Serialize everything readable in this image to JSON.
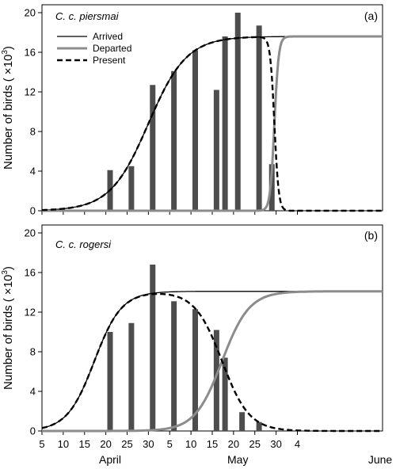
{
  "ylabel": "Number of birds",
  "ylabel_unit_prefix": "( ×10",
  "ylabel_unit_exp": "3",
  "ylabel_unit_suffix": ")",
  "legend": [
    "Arrived",
    "Departed",
    "Present"
  ],
  "colors": {
    "arrived": "#000000",
    "departed": "#8c8c8c",
    "present": "#000000",
    "bars": "#4d4d4d",
    "axis": "#000000"
  },
  "x_axis": {
    "tick_labels": [
      "5",
      "10",
      "15",
      "20",
      "25",
      "30",
      "5",
      "10",
      "15",
      "20",
      "25",
      "30",
      "4"
    ],
    "month_labels": [
      {
        "label": "April",
        "day": 21
      },
      {
        "label": "May",
        "day": 51
      },
      {
        "label": "June",
        "day": 85
      }
    ]
  },
  "chart_data": [
    {
      "type": "bar",
      "title": "C. c. piersmai",
      "panel_label": "(a)",
      "ylabel": "Number of birds (×10^3)",
      "ylim": [
        0,
        20
      ],
      "yticks": [
        0,
        4,
        8,
        12,
        16,
        20
      ],
      "x_unit": "days since 1 April (tick labels show date)",
      "xlim": [
        5,
        85
      ],
      "bars": [
        {
          "day": 21,
          "value": 4.1
        },
        {
          "day": 26,
          "value": 4.5
        },
        {
          "day": 31,
          "value": 12.7
        },
        {
          "day": 36,
          "value": 14.1
        },
        {
          "day": 41,
          "value": 16.2
        },
        {
          "day": 46,
          "value": 12.2
        },
        {
          "day": 48,
          "value": 17.6
        },
        {
          "day": 51,
          "value": 20.0
        },
        {
          "day": 56,
          "value": 18.7
        },
        {
          "day": 59,
          "value": 4.7
        }
      ],
      "curves": {
        "arrived": {
          "plateau": 17.6,
          "midpoint_day": 30,
          "spread": 4.5
        },
        "departed": {
          "plateau": 17.6,
          "midpoint_day": 59.6,
          "spread": 0.5
        },
        "present": "arrived - departed"
      }
    },
    {
      "type": "bar",
      "title": "C. c. rogersi",
      "panel_label": "(b)",
      "ylabel": "Number of birds (×10^3)",
      "ylim": [
        0,
        20
      ],
      "yticks": [
        0,
        4,
        8,
        12,
        16,
        20
      ],
      "xlim": [
        5,
        85
      ],
      "bars": [
        {
          "day": 21,
          "value": 10.0
        },
        {
          "day": 26,
          "value": 10.9
        },
        {
          "day": 31,
          "value": 16.8
        },
        {
          "day": 36,
          "value": 13.1
        },
        {
          "day": 41,
          "value": 12.3
        },
        {
          "day": 46,
          "value": 10.2
        },
        {
          "day": 48,
          "value": 7.4
        },
        {
          "day": 52,
          "value": 1.9
        },
        {
          "day": 56,
          "value": 0.9
        }
      ],
      "curves": {
        "arrived": {
          "plateau": 14.1,
          "midpoint_day": 17.3,
          "spread": 3.2
        },
        "departed": {
          "plateau": 14.1,
          "midpoint_day": 47.3,
          "spread": 3.2
        },
        "present": "arrived - departed"
      }
    }
  ]
}
